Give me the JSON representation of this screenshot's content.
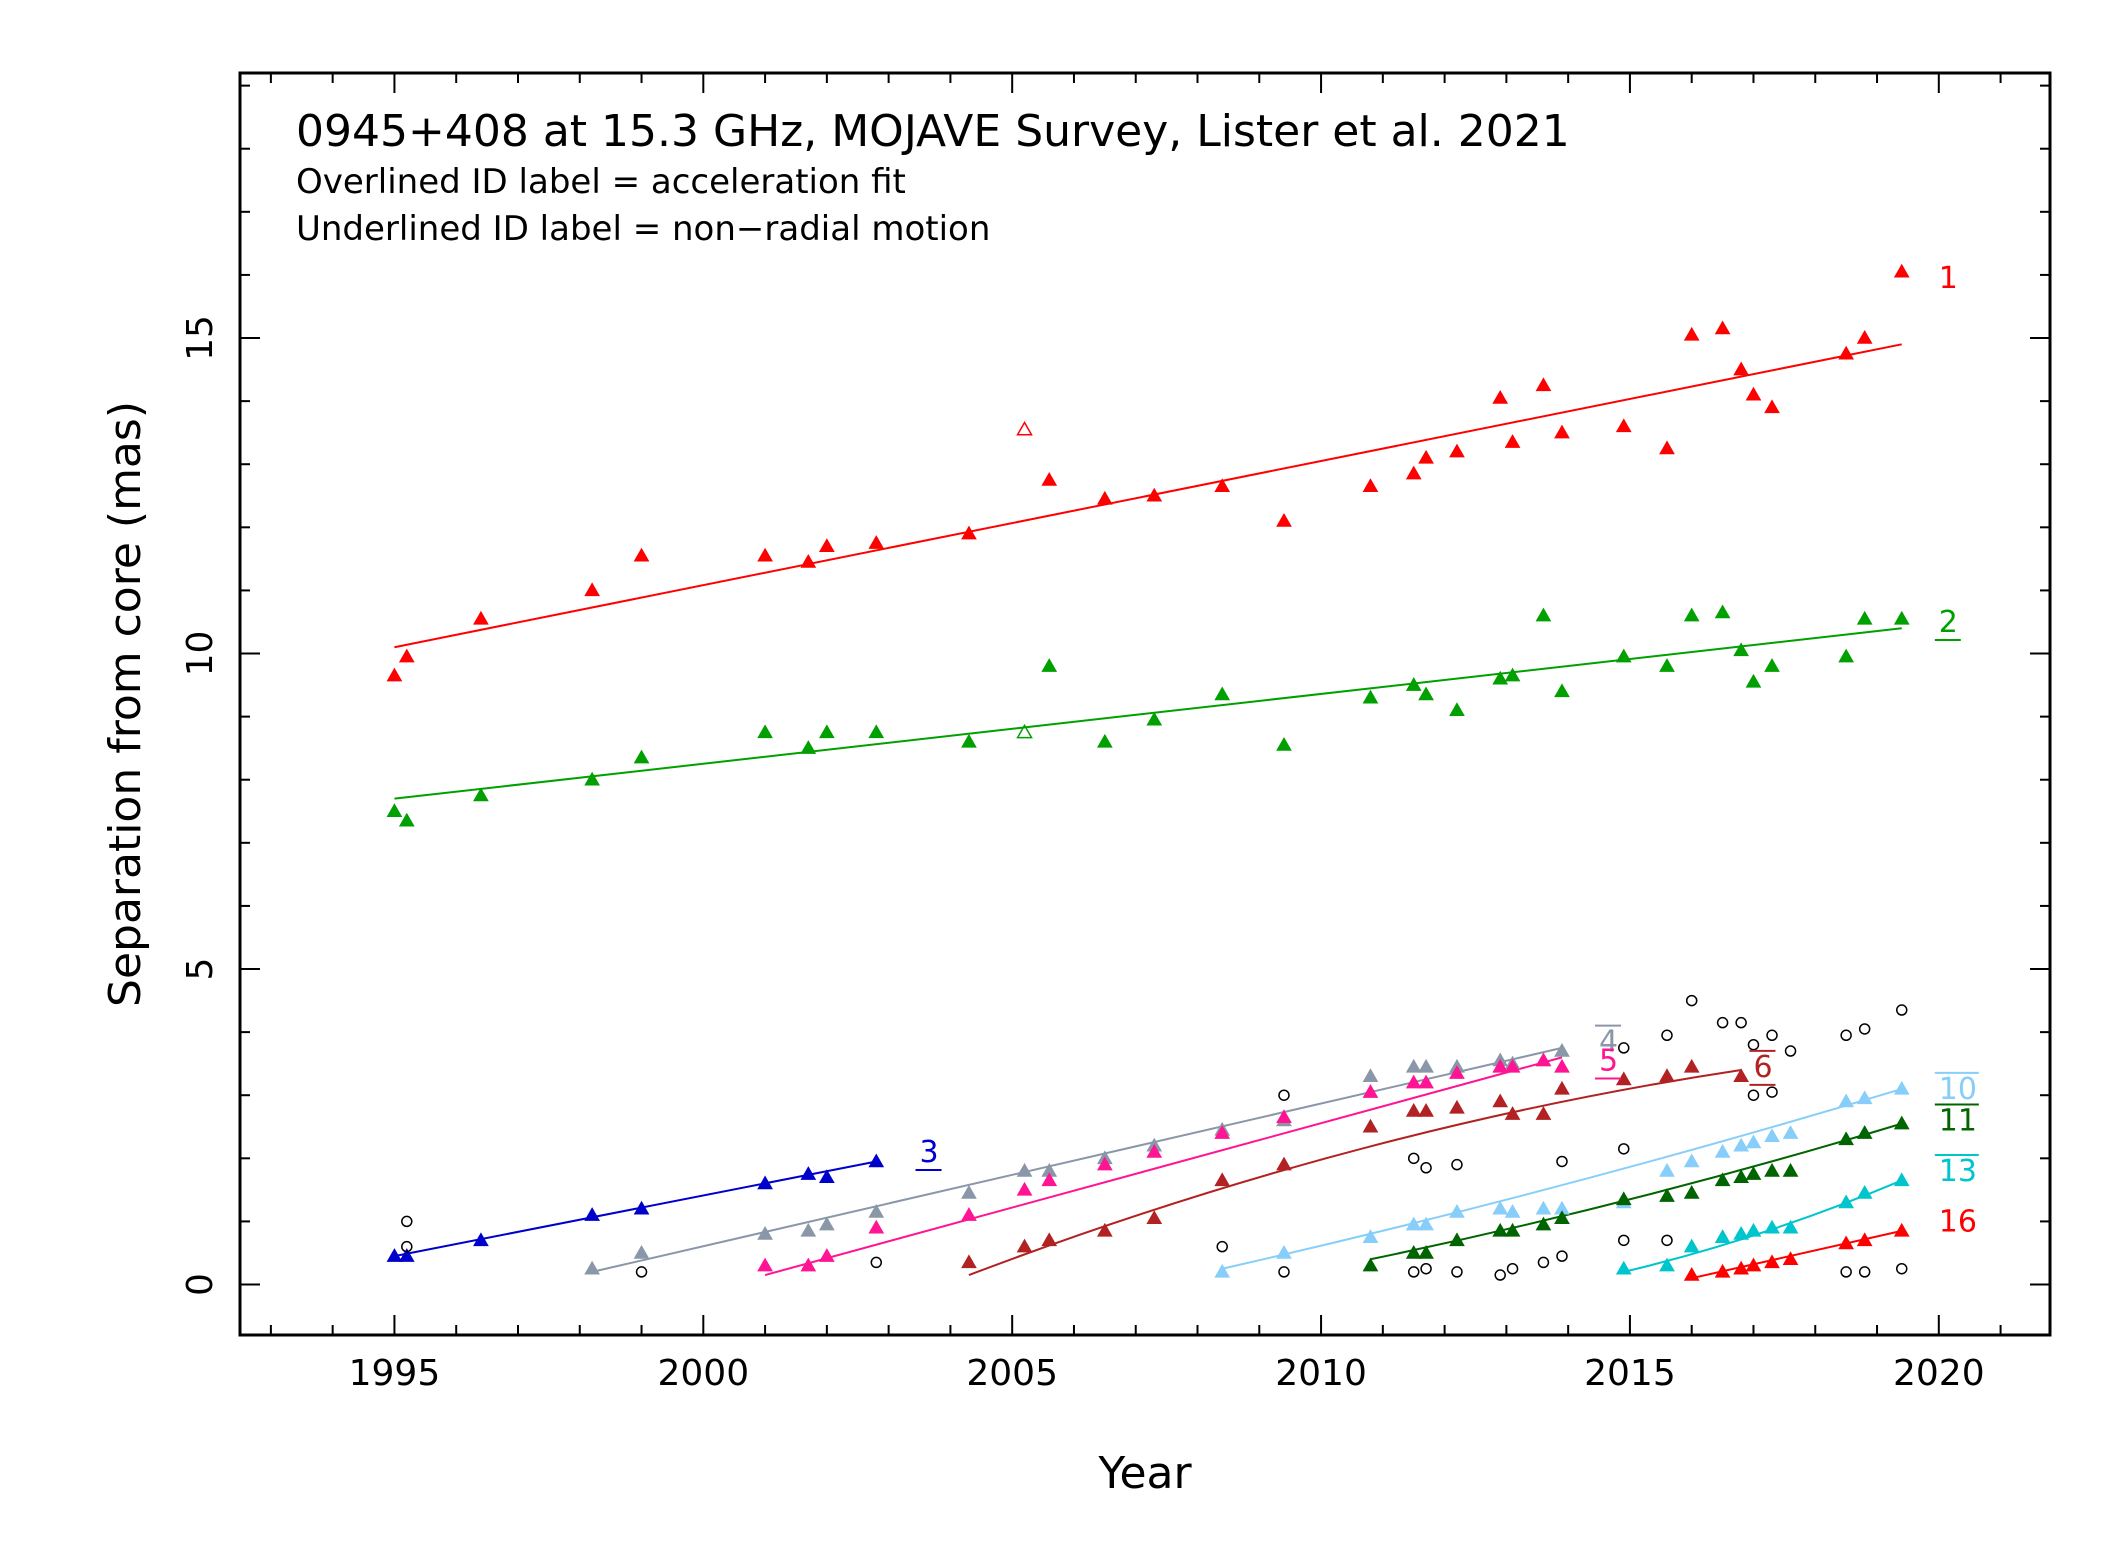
{
  "chart_data": {
    "type": "scatter",
    "title": "0945+408 at 15.3 GHz, MOJAVE Survey, Lister et al. 2021",
    "notes": [
      "Overlined ID label = acceleration fit",
      "Underlined ID label = non−radial motion"
    ],
    "xlabel": "Year",
    "ylabel": "Separation from core (mas)",
    "xlim": [
      1992.5,
      2021.8
    ],
    "ylim": [
      -0.8,
      19.2
    ],
    "xticks": [
      1995,
      2000,
      2005,
      2010,
      2015,
      2020
    ],
    "yticks": [
      0,
      5,
      10,
      15
    ],
    "series": [
      {
        "name": "1",
        "color": "#ff0000",
        "label_style": "plain",
        "points": [
          [
            1995.0,
            9.65
          ],
          [
            1995.2,
            9.95
          ],
          [
            1996.4,
            10.55
          ],
          [
            1998.2,
            11.0
          ],
          [
            1999.0,
            11.55
          ],
          [
            2001.0,
            11.55
          ],
          [
            2001.7,
            11.45
          ],
          [
            2002.0,
            11.7
          ],
          [
            2002.8,
            11.75
          ],
          [
            2004.3,
            11.9
          ],
          [
            2005.6,
            12.75
          ],
          [
            2006.5,
            12.45
          ],
          [
            2007.3,
            12.5
          ],
          [
            2008.4,
            12.65
          ],
          [
            2009.4,
            12.1
          ],
          [
            2010.8,
            12.65
          ],
          [
            2011.5,
            12.85
          ],
          [
            2011.7,
            13.1
          ],
          [
            2012.2,
            13.2
          ],
          [
            2012.9,
            14.05
          ],
          [
            2013.1,
            13.35
          ],
          [
            2013.6,
            14.25
          ],
          [
            2013.9,
            13.5
          ],
          [
            2014.9,
            13.6
          ],
          [
            2015.6,
            13.25
          ],
          [
            2016.0,
            15.05
          ],
          [
            2016.5,
            15.15
          ],
          [
            2016.8,
            14.5
          ],
          [
            2017.0,
            14.1
          ],
          [
            2017.3,
            13.9
          ],
          [
            2018.5,
            14.75
          ],
          [
            2018.8,
            15.0
          ],
          [
            2019.4,
            16.05
          ]
        ],
        "open_points": [
          [
            2005.2,
            13.55
          ]
        ],
        "fit": {
          "x0": 1995.0,
          "x1": 2019.4,
          "y0": 10.1,
          "y1": 14.9
        }
      },
      {
        "name": "2",
        "color": "#00a000",
        "label_style": "underlined",
        "points": [
          [
            1995.0,
            7.5
          ],
          [
            1995.2,
            7.35
          ],
          [
            1996.4,
            7.75
          ],
          [
            1998.2,
            8.0
          ],
          [
            1999.0,
            8.35
          ],
          [
            2001.0,
            8.75
          ],
          [
            2001.7,
            8.5
          ],
          [
            2002.0,
            8.75
          ],
          [
            2002.8,
            8.75
          ],
          [
            2004.3,
            8.6
          ],
          [
            2005.6,
            9.8
          ],
          [
            2006.5,
            8.6
          ],
          [
            2007.3,
            8.95
          ],
          [
            2008.4,
            9.35
          ],
          [
            2009.4,
            8.55
          ],
          [
            2010.8,
            9.3
          ],
          [
            2011.5,
            9.5
          ],
          [
            2011.7,
            9.35
          ],
          [
            2012.2,
            9.1
          ],
          [
            2012.9,
            9.6
          ],
          [
            2013.1,
            9.65
          ],
          [
            2013.6,
            10.6
          ],
          [
            2013.9,
            9.4
          ],
          [
            2014.9,
            9.95
          ],
          [
            2015.6,
            9.8
          ],
          [
            2016.0,
            10.6
          ],
          [
            2016.5,
            10.65
          ],
          [
            2016.8,
            10.05
          ],
          [
            2017.0,
            9.55
          ],
          [
            2017.3,
            9.8
          ],
          [
            2018.5,
            9.95
          ],
          [
            2018.8,
            10.55
          ],
          [
            2019.4,
            10.55
          ]
        ],
        "open_points": [
          [
            2005.2,
            8.75
          ]
        ],
        "fit": {
          "x0": 1995.0,
          "x1": 2019.4,
          "y0": 7.7,
          "y1": 10.4
        }
      },
      {
        "name": "3",
        "color": "#0000cc",
        "label_style": "underlined",
        "points": [
          [
            1995.0,
            0.45
          ],
          [
            1995.2,
            0.45
          ],
          [
            1996.4,
            0.7
          ],
          [
            1998.2,
            1.1
          ],
          [
            1999.0,
            1.2
          ],
          [
            2001.0,
            1.6
          ],
          [
            2001.7,
            1.75
          ],
          [
            2002.0,
            1.7
          ],
          [
            2002.8,
            1.95
          ]
        ],
        "fit": {
          "x0": 1995.0,
          "x1": 2002.8,
          "y0": 0.45,
          "y1": 1.95
        }
      },
      {
        "name": "4",
        "color": "#8a97a8",
        "label_style": "overlined",
        "points": [
          [
            1998.2,
            0.25
          ],
          [
            1999.0,
            0.5
          ],
          [
            2001.0,
            0.8
          ],
          [
            2001.7,
            0.85
          ],
          [
            2002.0,
            0.95
          ],
          [
            2002.8,
            1.15
          ],
          [
            2004.3,
            1.45
          ],
          [
            2005.2,
            1.8
          ],
          [
            2005.6,
            1.8
          ],
          [
            2006.5,
            2.0
          ],
          [
            2007.3,
            2.2
          ],
          [
            2008.4,
            2.45
          ],
          [
            2009.4,
            2.6
          ],
          [
            2010.8,
            3.3
          ],
          [
            2011.5,
            3.45
          ],
          [
            2011.7,
            3.45
          ],
          [
            2012.2,
            3.45
          ],
          [
            2012.9,
            3.55
          ],
          [
            2013.1,
            3.5
          ],
          [
            2013.6,
            3.55
          ],
          [
            2013.9,
            3.7
          ]
        ],
        "fit": {
          "x0": 1998.2,
          "x1": 2013.9,
          "y0": 0.2,
          "y1": 3.75
        }
      },
      {
        "name": "5",
        "color": "#ff1493",
        "label_style": "underlined",
        "points": [
          [
            2001.0,
            0.3
          ],
          [
            2001.7,
            0.3
          ],
          [
            2002.0,
            0.45
          ],
          [
            2002.8,
            0.9
          ],
          [
            2004.3,
            1.1
          ],
          [
            2005.2,
            1.5
          ],
          [
            2005.6,
            1.65
          ],
          [
            2006.5,
            1.9
          ],
          [
            2007.3,
            2.1
          ],
          [
            2008.4,
            2.4
          ],
          [
            2009.4,
            2.65
          ],
          [
            2010.8,
            3.05
          ],
          [
            2011.5,
            3.2
          ],
          [
            2011.7,
            3.2
          ],
          [
            2012.2,
            3.35
          ],
          [
            2012.9,
            3.45
          ],
          [
            2013.1,
            3.45
          ],
          [
            2013.6,
            3.55
          ],
          [
            2013.9,
            3.45
          ]
        ],
        "fit": {
          "x0": 2001.0,
          "x1": 2013.9,
          "y0": 0.15,
          "y1": 3.6
        }
      },
      {
        "name": "6",
        "color": "#b22222",
        "label_style": "overlined-underlined",
        "points": [
          [
            2004.3,
            0.35
          ],
          [
            2005.2,
            0.6
          ],
          [
            2005.6,
            0.7
          ],
          [
            2006.5,
            0.85
          ],
          [
            2007.3,
            1.05
          ],
          [
            2008.4,
            1.65
          ],
          [
            2009.4,
            1.9
          ],
          [
            2010.8,
            2.5
          ],
          [
            2011.5,
            2.75
          ],
          [
            2011.7,
            2.75
          ],
          [
            2012.2,
            2.8
          ],
          [
            2012.9,
            2.9
          ],
          [
            2013.1,
            2.7
          ],
          [
            2013.6,
            2.7
          ],
          [
            2013.9,
            3.1
          ],
          [
            2014.9,
            3.25
          ],
          [
            2015.6,
            3.3
          ],
          [
            2016.0,
            3.45
          ],
          [
            2016.8,
            3.3
          ]
        ],
        "fit": {
          "x0": 2004.3,
          "x1": 2016.8,
          "y0": 0.15,
          "y1": 3.4,
          "curved": true
        }
      },
      {
        "name": "10",
        "color": "#87cefa",
        "label_style": "overlined",
        "points": [
          [
            2008.4,
            0.2
          ],
          [
            2009.4,
            0.5
          ],
          [
            2010.8,
            0.75
          ],
          [
            2011.5,
            0.95
          ],
          [
            2011.7,
            0.95
          ],
          [
            2012.2,
            1.15
          ],
          [
            2012.9,
            1.2
          ],
          [
            2013.1,
            1.15
          ],
          [
            2013.6,
            1.2
          ],
          [
            2013.9,
            1.2
          ],
          [
            2014.9,
            1.3
          ],
          [
            2015.6,
            1.8
          ],
          [
            2016.0,
            1.95
          ],
          [
            2016.5,
            2.1
          ],
          [
            2016.8,
            2.2
          ],
          [
            2017.0,
            2.25
          ],
          [
            2017.3,
            2.35
          ],
          [
            2017.6,
            2.4
          ],
          [
            2018.5,
            2.9
          ],
          [
            2018.8,
            2.95
          ],
          [
            2019.4,
            3.1
          ]
        ],
        "fit": {
          "x0": 2008.4,
          "x1": 2019.4,
          "y0": 0.25,
          "y1": 3.1,
          "curved": true
        }
      },
      {
        "name": "11",
        "color": "#006400",
        "label_style": "overlined",
        "points": [
          [
            2010.8,
            0.3
          ],
          [
            2011.5,
            0.5
          ],
          [
            2011.7,
            0.5
          ],
          [
            2012.2,
            0.7
          ],
          [
            2012.9,
            0.85
          ],
          [
            2013.1,
            0.85
          ],
          [
            2013.6,
            0.95
          ],
          [
            2013.9,
            1.05
          ],
          [
            2014.9,
            1.35
          ],
          [
            2015.6,
            1.4
          ],
          [
            2016.0,
            1.45
          ],
          [
            2016.5,
            1.65
          ],
          [
            2016.8,
            1.7
          ],
          [
            2017.0,
            1.75
          ],
          [
            2017.3,
            1.8
          ],
          [
            2017.6,
            1.8
          ],
          [
            2018.5,
            2.3
          ],
          [
            2018.8,
            2.4
          ],
          [
            2019.4,
            2.55
          ]
        ],
        "fit": {
          "x0": 2010.8,
          "x1": 2019.4,
          "y0": 0.4,
          "y1": 2.55,
          "curved": true
        }
      },
      {
        "name": "13",
        "color": "#00c5cd",
        "label_style": "overlined",
        "points": [
          [
            2014.9,
            0.25
          ],
          [
            2015.6,
            0.3
          ],
          [
            2016.0,
            0.6
          ],
          [
            2016.5,
            0.75
          ],
          [
            2016.8,
            0.8
          ],
          [
            2017.0,
            0.85
          ],
          [
            2017.3,
            0.9
          ],
          [
            2017.6,
            0.9
          ],
          [
            2018.5,
            1.3
          ],
          [
            2018.8,
            1.45
          ],
          [
            2019.4,
            1.65
          ]
        ],
        "fit": {
          "x0": 2014.9,
          "x1": 2019.4,
          "y0": 0.2,
          "y1": 1.65,
          "curved": true
        }
      },
      {
        "name": "16",
        "color": "#ff0000",
        "label_style": "plain",
        "points": [
          [
            2016.0,
            0.15
          ],
          [
            2016.5,
            0.2
          ],
          [
            2016.8,
            0.25
          ],
          [
            2017.0,
            0.3
          ],
          [
            2017.3,
            0.35
          ],
          [
            2017.6,
            0.4
          ],
          [
            2018.5,
            0.65
          ],
          [
            2018.8,
            0.7
          ],
          [
            2019.4,
            0.85
          ]
        ],
        "fit": {
          "x0": 2016.0,
          "x1": 2019.4,
          "y0": 0.1,
          "y1": 0.85
        }
      }
    ],
    "unassociated": [
      [
        1995.2,
        1.0
      ],
      [
        1995.2,
        0.6
      ],
      [
        1999.0,
        0.2
      ],
      [
        2002.8,
        0.35
      ],
      [
        2008.4,
        0.6
      ],
      [
        2009.4,
        3.0
      ],
      [
        2009.4,
        0.2
      ],
      [
        2011.5,
        2.0
      ],
      [
        2011.7,
        1.85
      ],
      [
        2011.5,
        0.2
      ],
      [
        2011.7,
        0.25
      ],
      [
        2012.2,
        1.9
      ],
      [
        2012.2,
        0.2
      ],
      [
        2012.9,
        0.15
      ],
      [
        2013.1,
        0.25
      ],
      [
        2013.6,
        0.35
      ],
      [
        2013.9,
        1.95
      ],
      [
        2013.9,
        0.45
      ],
      [
        2014.9,
        3.75
      ],
      [
        2014.9,
        2.15
      ],
      [
        2014.9,
        0.7
      ],
      [
        2015.6,
        3.95
      ],
      [
        2015.6,
        0.7
      ],
      [
        2016.0,
        4.5
      ],
      [
        2016.5,
        4.15
      ],
      [
        2016.8,
        4.15
      ],
      [
        2017.0,
        3.8
      ],
      [
        2017.0,
        3.0
      ],
      [
        2017.3,
        3.95
      ],
      [
        2017.3,
        3.05
      ],
      [
        2017.6,
        3.7
      ],
      [
        2018.5,
        3.95
      ],
      [
        2018.5,
        0.2
      ],
      [
        2018.8,
        4.05
      ],
      [
        2018.8,
        0.2
      ],
      [
        2019.4,
        4.35
      ],
      [
        2019.4,
        0.25
      ]
    ]
  }
}
